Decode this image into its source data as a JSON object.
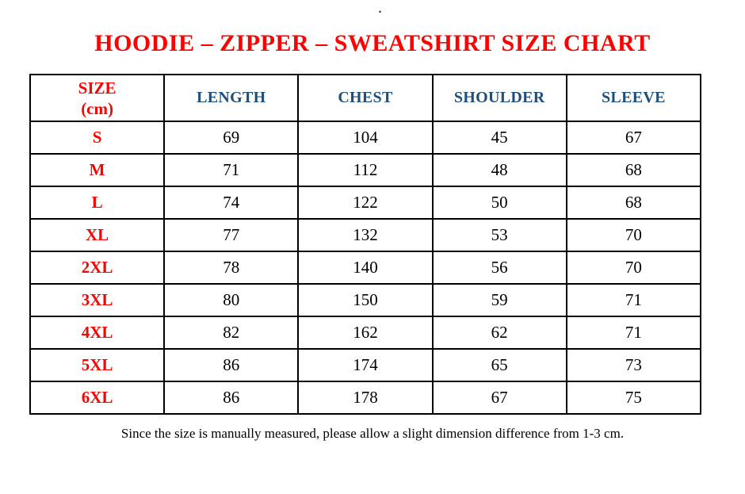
{
  "page": {
    "stray_dot": ".",
    "title": "HOODIE – ZIPPER – SWEATSHIRT SIZE CHART",
    "footnote": "Since the size is manually measured, please allow a slight dimension difference from 1-3 cm."
  },
  "colors": {
    "title_red": "#FF0000",
    "size_label_red": "#FF0000",
    "column_header_blue": "#1F4E79",
    "value_black": "#000000",
    "border_black": "#000000",
    "background": "#FFFFFF"
  },
  "table": {
    "size_header": {
      "line1": "SIZE",
      "line2": "(cm)"
    },
    "measure_headers": [
      "LENGTH",
      "CHEST",
      "SHOULDER",
      "SLEEVE"
    ],
    "rows": [
      {
        "size": "S",
        "length": "69",
        "chest": "104",
        "shoulder": "45",
        "sleeve": "67"
      },
      {
        "size": "M",
        "length": "71",
        "chest": "112",
        "shoulder": "48",
        "sleeve": "68"
      },
      {
        "size": "L",
        "length": "74",
        "chest": "122",
        "shoulder": "50",
        "sleeve": "68"
      },
      {
        "size": "XL",
        "length": "77",
        "chest": "132",
        "shoulder": "53",
        "sleeve": "70"
      },
      {
        "size": "2XL",
        "length": "78",
        "chest": "140",
        "shoulder": "56",
        "sleeve": "70"
      },
      {
        "size": "3XL",
        "length": "80",
        "chest": "150",
        "shoulder": "59",
        "sleeve": "71"
      },
      {
        "size": "4XL",
        "length": "82",
        "chest": "162",
        "shoulder": "62",
        "sleeve": "71"
      },
      {
        "size": "5XL",
        "length": "86",
        "chest": "174",
        "shoulder": "65",
        "sleeve": "73"
      },
      {
        "size": "6XL",
        "length": "86",
        "chest": "178",
        "shoulder": "67",
        "sleeve": "75"
      }
    ]
  },
  "chart_data": {
    "type": "table",
    "title": "HOODIE – ZIPPER – SWEATSHIRT SIZE CHART",
    "unit": "cm",
    "columns": [
      "SIZE (cm)",
      "LENGTH",
      "CHEST",
      "SHOULDER",
      "SLEEVE"
    ],
    "rows": [
      [
        "S",
        69,
        104,
        45,
        67
      ],
      [
        "M",
        71,
        112,
        48,
        68
      ],
      [
        "L",
        74,
        122,
        50,
        68
      ],
      [
        "XL",
        77,
        132,
        53,
        70
      ],
      [
        "2XL",
        78,
        140,
        56,
        70
      ],
      [
        "3XL",
        80,
        150,
        59,
        71
      ],
      [
        "4XL",
        82,
        162,
        62,
        71
      ],
      [
        "5XL",
        86,
        174,
        65,
        73
      ],
      [
        "6XL",
        86,
        178,
        67,
        75
      ]
    ],
    "note": "Since the size is manually measured, please allow a slight dimension difference from 1-3 cm."
  }
}
